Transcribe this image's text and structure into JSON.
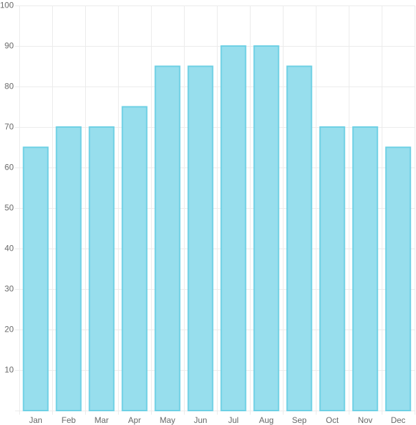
{
  "chart_data": {
    "type": "bar",
    "categories": [
      "Jan",
      "Feb",
      "Mar",
      "Apr",
      "May",
      "Jun",
      "Jul",
      "Aug",
      "Sep",
      "Oct",
      "Nov",
      "Dec"
    ],
    "values": [
      65,
      70,
      70,
      75,
      85,
      85,
      90,
      90,
      85,
      70,
      70,
      65
    ],
    "color": "#97deed",
    "ylim": [
      0,
      100
    ],
    "yticks": [
      10,
      20,
      30,
      40,
      50,
      60,
      70,
      80,
      90,
      100
    ],
    "grid": true
  }
}
